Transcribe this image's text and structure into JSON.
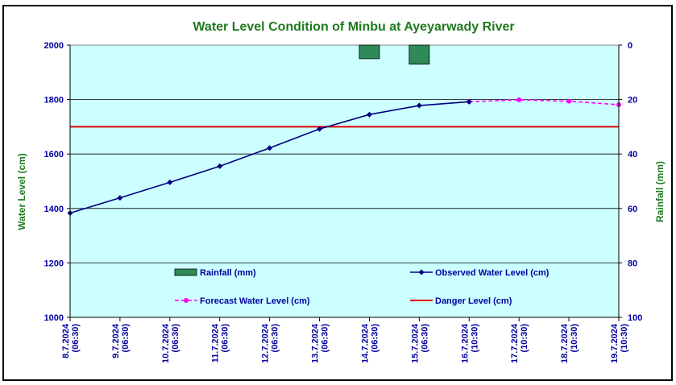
{
  "chart_data": {
    "type": "line",
    "title": "Water Level Condition of Minbu at Ayeyarwady River",
    "ylabel_left": "Water Level (cm)",
    "ylabel_right": "Rainfall (mm)",
    "ylim_left": [
      1000,
      2000
    ],
    "yticks_left": [
      "1000",
      "1200",
      "1400",
      "1600",
      "1800",
      "2000"
    ],
    "ylim_right_inverted": [
      0,
      100
    ],
    "yticks_right": [
      "0",
      "20",
      "40",
      "60",
      "80",
      "100"
    ],
    "categories": [
      "8.7.2024 (06:30)",
      "9.7.2024 (06:30)",
      "10.7.2024 (06:30)",
      "11.7.2024 (06:30)",
      "12.7.2024 (06:30)",
      "13.7.2024 (06:30)",
      "14.7.2024 (06:30)",
      "15.7.2024 (06:30)",
      "16.7.2024 (10:30)",
      "17.7.2024 (10:30)",
      "18.7.2024 (10:30)",
      "19.7.2024 (10:30)"
    ],
    "x_tick_lines": [
      [
        "8.7.2024",
        "(06:30)"
      ],
      [
        "9.7.2024",
        "(06:30)"
      ],
      [
        "10.7.2024",
        "(06:30)"
      ],
      [
        "11.7.2024",
        "(06:30)"
      ],
      [
        "12.7.2024",
        "(06:30)"
      ],
      [
        "13.7.2024",
        "(06:30)"
      ],
      [
        "14.7.2024",
        "(06:30)"
      ],
      [
        "15.7.2024",
        "(06:30)"
      ],
      [
        "16.7.2024",
        "(10:30)"
      ],
      [
        "17.7.2024",
        "(10:30)"
      ],
      [
        "18.7.2024",
        "(10:30)"
      ],
      [
        "19.7.2024",
        "(10:30)"
      ]
    ],
    "series": [
      {
        "name": "Observed Water Level (cm)",
        "axis": "left",
        "color": "#000080",
        "values": [
          1383,
          1439,
          1496,
          1555,
          1622,
          1692,
          1745,
          1778,
          1792,
          null,
          null,
          null
        ]
      },
      {
        "name": "Forecast Water Level (cm)",
        "axis": "left",
        "color": "#ff00ff",
        "style": "dashed",
        "values": [
          null,
          null,
          null,
          null,
          null,
          null,
          null,
          null,
          1792,
          1799,
          1794,
          1781
        ]
      },
      {
        "name": "Danger Level (cm)",
        "axis": "left",
        "color": "#e00000",
        "constant": 1700
      },
      {
        "name": "Rainfall (mm)",
        "axis": "right",
        "color": "#2e8b57",
        "type": "bar",
        "values": [
          0,
          0,
          0,
          0,
          0,
          0,
          5,
          7,
          0,
          0,
          0,
          0
        ]
      }
    ],
    "legend": [
      {
        "label": "Rainfall (mm)",
        "kind": "bar",
        "color": "#2e8b57"
      },
      {
        "label": "Observed Water Level (cm)",
        "kind": "line-marker",
        "color": "#000080"
      },
      {
        "label": "Forecast Water Level (cm)",
        "kind": "dashed-marker",
        "color": "#ff00ff"
      },
      {
        "label": "Danger Level (cm)",
        "kind": "line",
        "color": "#e00000"
      }
    ],
    "legend_position": "inside-bottom",
    "grid": true,
    "colors": {
      "plot_background": "#ccffff",
      "title": "#1f7a1f",
      "tick_text": "#0000a0",
      "gridline": "#000000"
    }
  }
}
